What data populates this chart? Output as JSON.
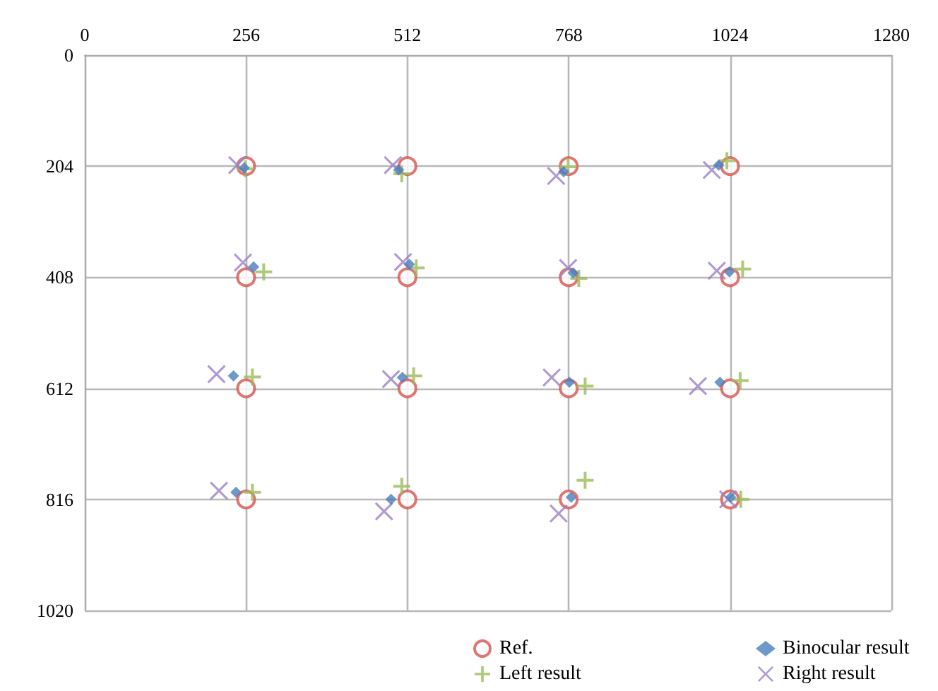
{
  "chart_data": {
    "type": "scatter",
    "xlim": [
      0,
      1280
    ],
    "xticks": [
      0,
      256,
      512,
      768,
      1024,
      1280
    ],
    "ylim": [
      1020,
      0
    ],
    "yticks": [
      0,
      204,
      408,
      612,
      816,
      1020
    ],
    "grid": true,
    "legend": "bottom right",
    "series": [
      {
        "name": "Ref.",
        "color": "#d9534f",
        "marker": "circle",
        "x": [
          256,
          512,
          768,
          1024,
          256,
          512,
          768,
          1024,
          256,
          512,
          768,
          1024,
          256,
          512,
          768,
          1024
        ],
        "values": [
          204,
          204,
          204,
          204,
          408,
          408,
          408,
          408,
          612,
          612,
          612,
          612,
          816,
          816,
          816,
          816
        ]
      },
      {
        "name": "Binocular result",
        "color": "#4a7ebb",
        "marker": "diamond",
        "x": [
          253,
          498,
          760,
          1006,
          268,
          515,
          775,
          1023,
          236,
          504,
          769,
          1008,
          240,
          486,
          772,
          1025
        ],
        "values": [
          207,
          211,
          214,
          202,
          389,
          384,
          400,
          398,
          589,
          592,
          601,
          601,
          803,
          816,
          812,
          812
        ]
      },
      {
        "name": "Left result",
        "color": "#9bbb59",
        "marker": "cross",
        "x": [
          255,
          503,
          767,
          1019,
          284,
          526,
          784,
          1044,
          266,
          522,
          794,
          1040,
          266,
          503,
          794,
          1041
        ],
        "values": [
          209,
          218,
          205,
          194,
          398,
          391,
          410,
          393,
          591,
          589,
          608,
          598,
          803,
          792,
          781,
          816
        ]
      },
      {
        "name": "Right result",
        "color": "#9a7fc4",
        "marker": "x",
        "x": [
          242,
          489,
          748,
          995,
          251,
          505,
          767,
          1003,
          209,
          486,
          741,
          973,
          213,
          475,
          752,
          1021
        ],
        "values": [
          202,
          202,
          222,
          211,
          381,
          380,
          391,
          396,
          586,
          595,
          592,
          608,
          800,
          838,
          842,
          816
        ]
      }
    ]
  }
}
